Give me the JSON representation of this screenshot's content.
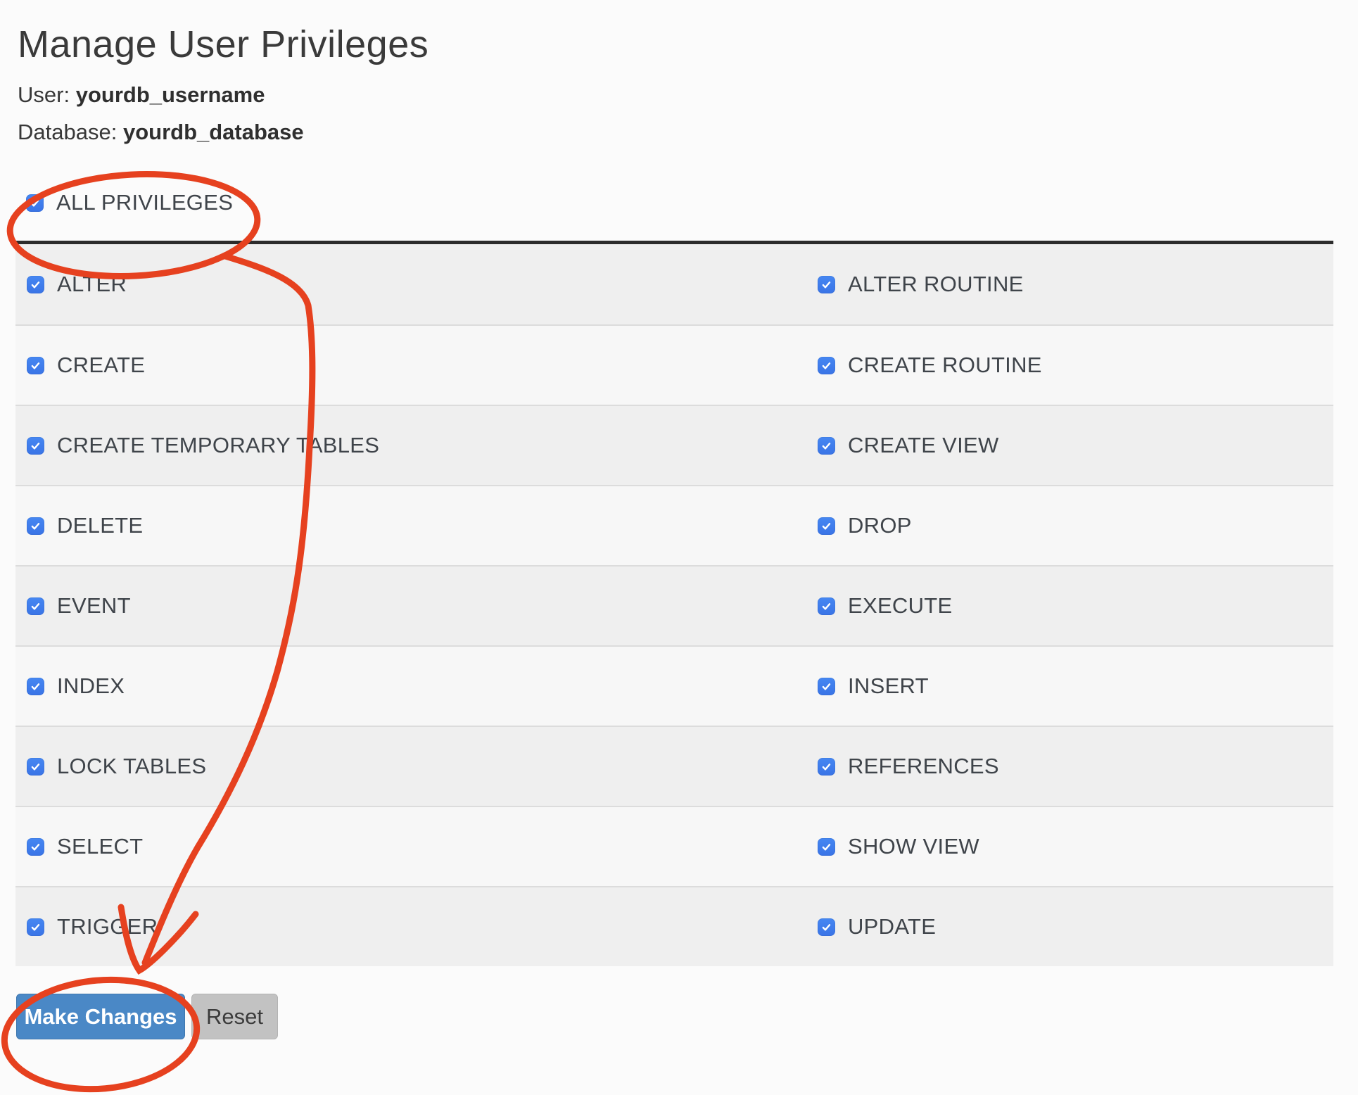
{
  "header": {
    "title": "Manage User Privileges",
    "user_label": "User:",
    "user_value": "yourdb_username",
    "database_label": "Database:",
    "database_value": "yourdb_database"
  },
  "all_privileges": {
    "label": "ALL PRIVILEGES",
    "checked": true
  },
  "privileges": {
    "rows": [
      {
        "left": {
          "label": "ALTER",
          "checked": true
        },
        "right": {
          "label": "ALTER ROUTINE",
          "checked": true
        }
      },
      {
        "left": {
          "label": "CREATE",
          "checked": true
        },
        "right": {
          "label": "CREATE ROUTINE",
          "checked": true
        }
      },
      {
        "left": {
          "label": "CREATE TEMPORARY TABLES",
          "checked": true
        },
        "right": {
          "label": "CREATE VIEW",
          "checked": true
        }
      },
      {
        "left": {
          "label": "DELETE",
          "checked": true
        },
        "right": {
          "label": "DROP",
          "checked": true
        }
      },
      {
        "left": {
          "label": "EVENT",
          "checked": true
        },
        "right": {
          "label": "EXECUTE",
          "checked": true
        }
      },
      {
        "left": {
          "label": "INDEX",
          "checked": true
        },
        "right": {
          "label": "INSERT",
          "checked": true
        }
      },
      {
        "left": {
          "label": "LOCK TABLES",
          "checked": true
        },
        "right": {
          "label": "REFERENCES",
          "checked": true
        }
      },
      {
        "left": {
          "label": "SELECT",
          "checked": true
        },
        "right": {
          "label": "SHOW VIEW",
          "checked": true
        }
      },
      {
        "left": {
          "label": "TRIGGER",
          "checked": true
        },
        "right": {
          "label": "UPDATE",
          "checked": true
        }
      }
    ]
  },
  "actions": {
    "make_changes_label": "Make Changes",
    "reset_label": "Reset"
  },
  "annotations": {
    "color": "#e6411f",
    "circle_1_target": "ALL PRIVILEGES checkbox",
    "arrow_target": "Make Changes button",
    "circle_2_target": "Make Changes button"
  },
  "colors": {
    "page_background": "#fbfbfb",
    "row_odd": "#efefef",
    "row_even": "#f7f7f7",
    "row_border": "#dcdcdc",
    "divider": "#2c2c2c",
    "checkbox_blue": "#3d7ced",
    "primary_button_blue": "#4a88c6",
    "secondary_button_gray": "#c2c2c2",
    "annotation_red": "#e6411f",
    "text_dark": "#3c4146"
  }
}
